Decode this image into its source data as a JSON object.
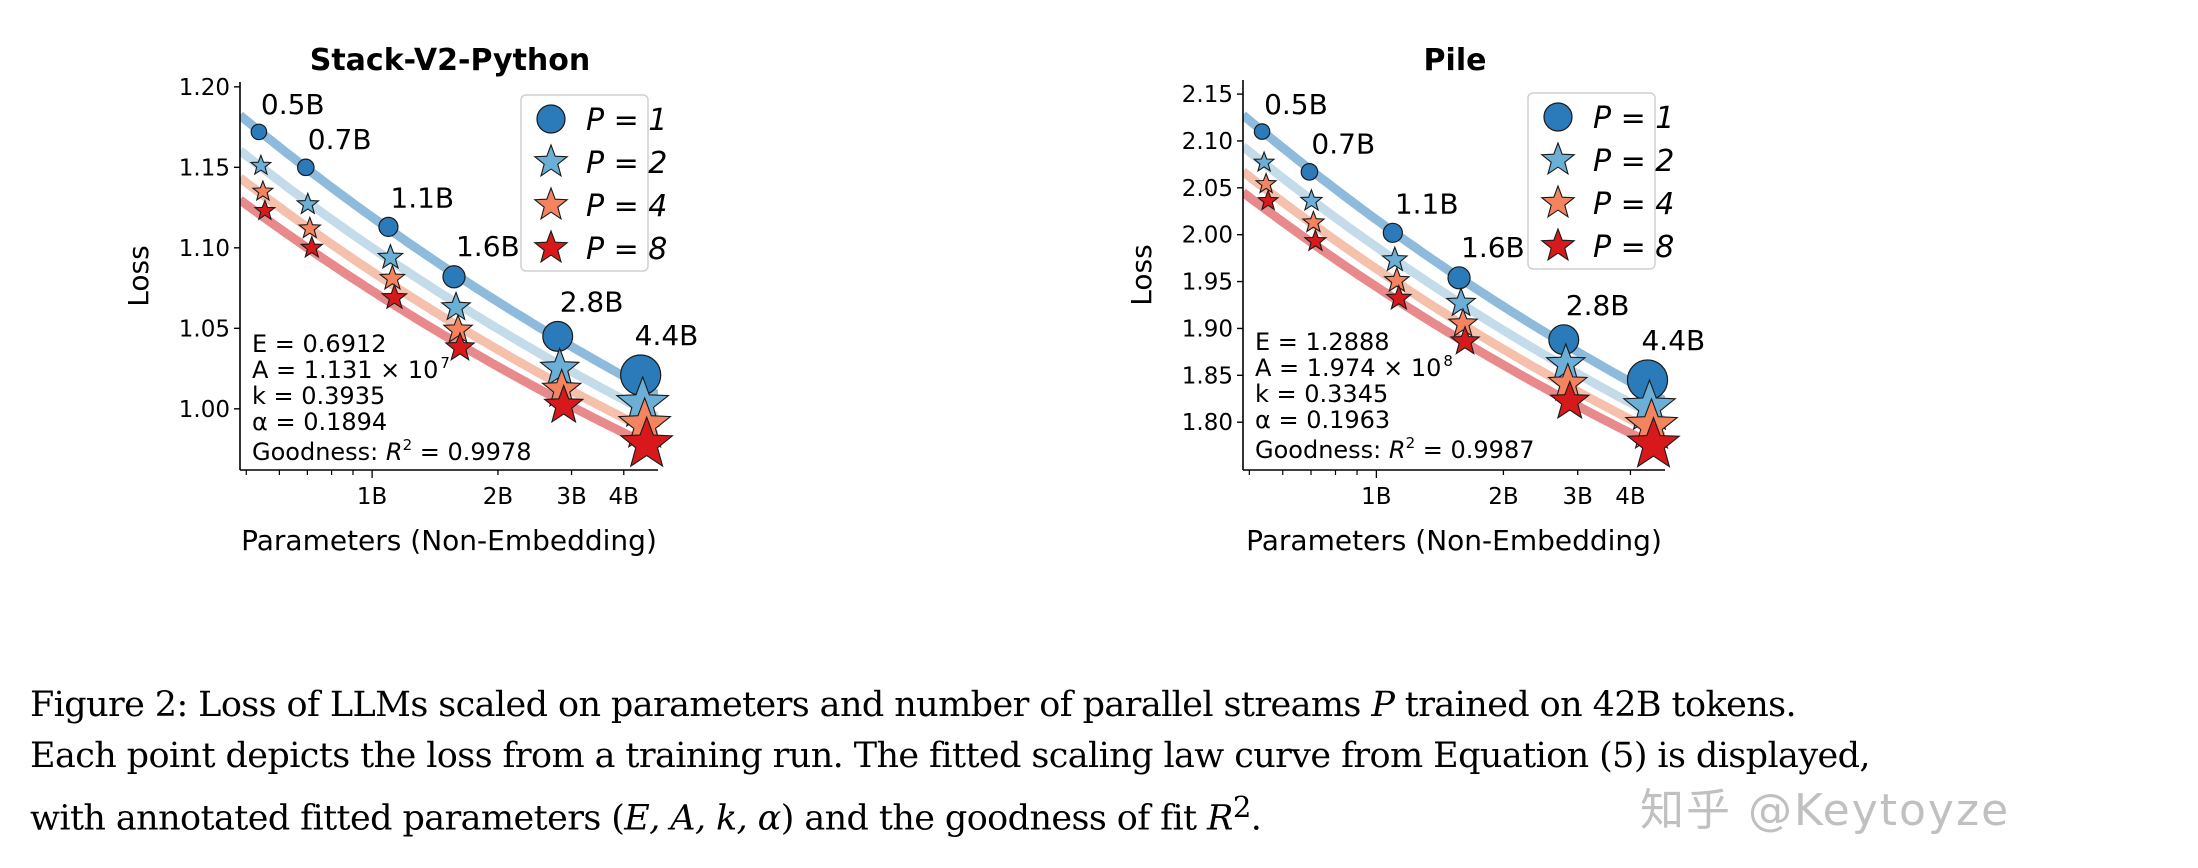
{
  "chart_data": [
    {
      "type": "line+scatter",
      "title": "Stack-V2-Python",
      "xlabel": "Parameters (Non-Embedding)",
      "ylabel": "Loss",
      "xscale": "log",
      "xlim": [
        0.483,
        4.83
      ],
      "ylim": [
        0.962,
        1.203
      ],
      "x_ticks": [
        {
          "value": 1,
          "label": "1B"
        },
        {
          "value": 2,
          "label": "2B"
        },
        {
          "value": 3,
          "label": "3B"
        },
        {
          "value": 4,
          "label": "4B"
        }
      ],
      "x_minor_ticks": [
        0.5,
        0.6,
        0.7,
        0.8,
        0.9
      ],
      "y_ticks": [
        1.0,
        1.05,
        1.1,
        1.15,
        1.2
      ],
      "y_tick_labels": [
        "1.00",
        "1.05",
        "1.10",
        "1.15",
        "1.20"
      ],
      "x_unit": "B",
      "point_labels": [
        "0.5B",
        "0.7B",
        "1.1B",
        "1.6B",
        "2.8B",
        "4.4B"
      ],
      "x": [
        0.536,
        0.694,
        1.094,
        1.57,
        2.78,
        4.39
      ],
      "series": [
        {
          "name": "P = 1",
          "P": 1,
          "marker": "circle",
          "color": "#2b7bba",
          "curve_color": "#8ebbdc",
          "values": [
            1.172,
            1.15,
            1.113,
            1.082,
            1.045,
            1.021
          ]
        },
        {
          "name": "P = 2",
          "P": 2,
          "marker": "star",
          "color": "#6baed6",
          "curve_color": "#c4dcea",
          "values": [
            1.151,
            1.127,
            1.094,
            1.063,
            1.025,
            1.003
          ]
        },
        {
          "name": "P = 4",
          "P": 4,
          "marker": "star",
          "color": "#f4845f",
          "curve_color": "#f5c1ad",
          "values": [
            1.135,
            1.112,
            1.081,
            1.049,
            1.012,
            0.99
          ]
        },
        {
          "name": "P = 8",
          "P": 8,
          "marker": "star",
          "color": "#d7191c",
          "curve_color": "#e88a8b",
          "values": [
            1.123,
            1.1,
            1.069,
            1.038,
            1.002,
            0.978
          ]
        }
      ],
      "legend": "top-right",
      "fit": {
        "E": "0.6912",
        "A_mantissa": "1.131",
        "A_exponent": "7",
        "k": "0.3935",
        "alpha": "0.1894",
        "r2": "0.9978",
        "E_text": "E = 0.6912",
        "A_text": "A = 1.131 × 10",
        "k_text": "k = 0.3935",
        "alpha_text": "α = 0.1894",
        "r2_prefix": "Goodness: ",
        "r2_text": " = 0.9978"
      }
    },
    {
      "type": "line+scatter",
      "title": "Pile",
      "xlabel": "Parameters (Non-Embedding)",
      "ylabel": "Loss",
      "xscale": "log",
      "xlim": [
        0.483,
        4.83
      ],
      "ylim": [
        1.749,
        2.165
      ],
      "x_ticks": [
        {
          "value": 1,
          "label": "1B"
        },
        {
          "value": 2,
          "label": "2B"
        },
        {
          "value": 3,
          "label": "3B"
        },
        {
          "value": 4,
          "label": "4B"
        }
      ],
      "x_minor_ticks": [
        0.5,
        0.6,
        0.7,
        0.8,
        0.9
      ],
      "y_ticks": [
        1.8,
        1.85,
        1.9,
        1.95,
        2.0,
        2.05,
        2.1,
        2.15
      ],
      "y_tick_labels": [
        "1.80",
        "1.85",
        "1.90",
        "1.95",
        "2.00",
        "2.05",
        "2.10",
        "2.15"
      ],
      "x_unit": "B",
      "point_labels": [
        "0.5B",
        "0.7B",
        "1.1B",
        "1.6B",
        "2.8B",
        "4.4B"
      ],
      "x": [
        0.536,
        0.694,
        1.094,
        1.57,
        2.78,
        4.39
      ],
      "series": [
        {
          "name": "P = 1",
          "P": 1,
          "marker": "circle",
          "color": "#2b7bba",
          "curve_color": "#8ebbdc",
          "values": [
            2.11,
            2.067,
            2.002,
            1.954,
            1.888,
            1.845
          ]
        },
        {
          "name": "P = 2",
          "P": 2,
          "marker": "star",
          "color": "#6baed6",
          "curve_color": "#c4dcea",
          "values": [
            2.077,
            2.036,
            1.973,
            1.927,
            1.862,
            1.816
          ]
        },
        {
          "name": "P = 4",
          "P": 4,
          "marker": "star",
          "color": "#f4845f",
          "curve_color": "#f5c1ad",
          "values": [
            2.054,
            2.013,
            1.951,
            1.905,
            1.841,
            1.796
          ]
        },
        {
          "name": "P = 8",
          "P": 8,
          "marker": "star",
          "color": "#d7191c",
          "curve_color": "#e88a8b",
          "values": [
            2.036,
            1.993,
            1.932,
            1.886,
            1.822,
            1.776
          ]
        }
      ],
      "legend": "top-right",
      "fit": {
        "E": "1.2888",
        "A_mantissa": "1.974",
        "A_exponent": "8",
        "k": "0.3345",
        "alpha": "0.1963",
        "r2": "0.9987",
        "E_text": "E = 1.2888",
        "A_text": "A = 1.974 × 10",
        "k_text": "k = 0.3345",
        "alpha_text": "α = 0.1963",
        "r2_prefix": "Goodness: ",
        "r2_text": " = 0.9987"
      }
    }
  ],
  "caption": {
    "l1a": "Figure 2: Loss of LLMs scaled on parameters and number of parallel streams ",
    "l1p": "P",
    "l1b": " trained on 42B tokens.",
    "l2": "Each point depicts the loss from a training run. The fitted scaling law curve from Equation (5) is displayed,",
    "l3a": "with annotated fitted parameters (",
    "l3vars": "E, A, k, α",
    "l3b": ") and the goodness of fit ",
    "l3r": "R",
    "l3sup": "2",
    "l3c": "."
  },
  "watermark": "知乎 @Keytoyze"
}
